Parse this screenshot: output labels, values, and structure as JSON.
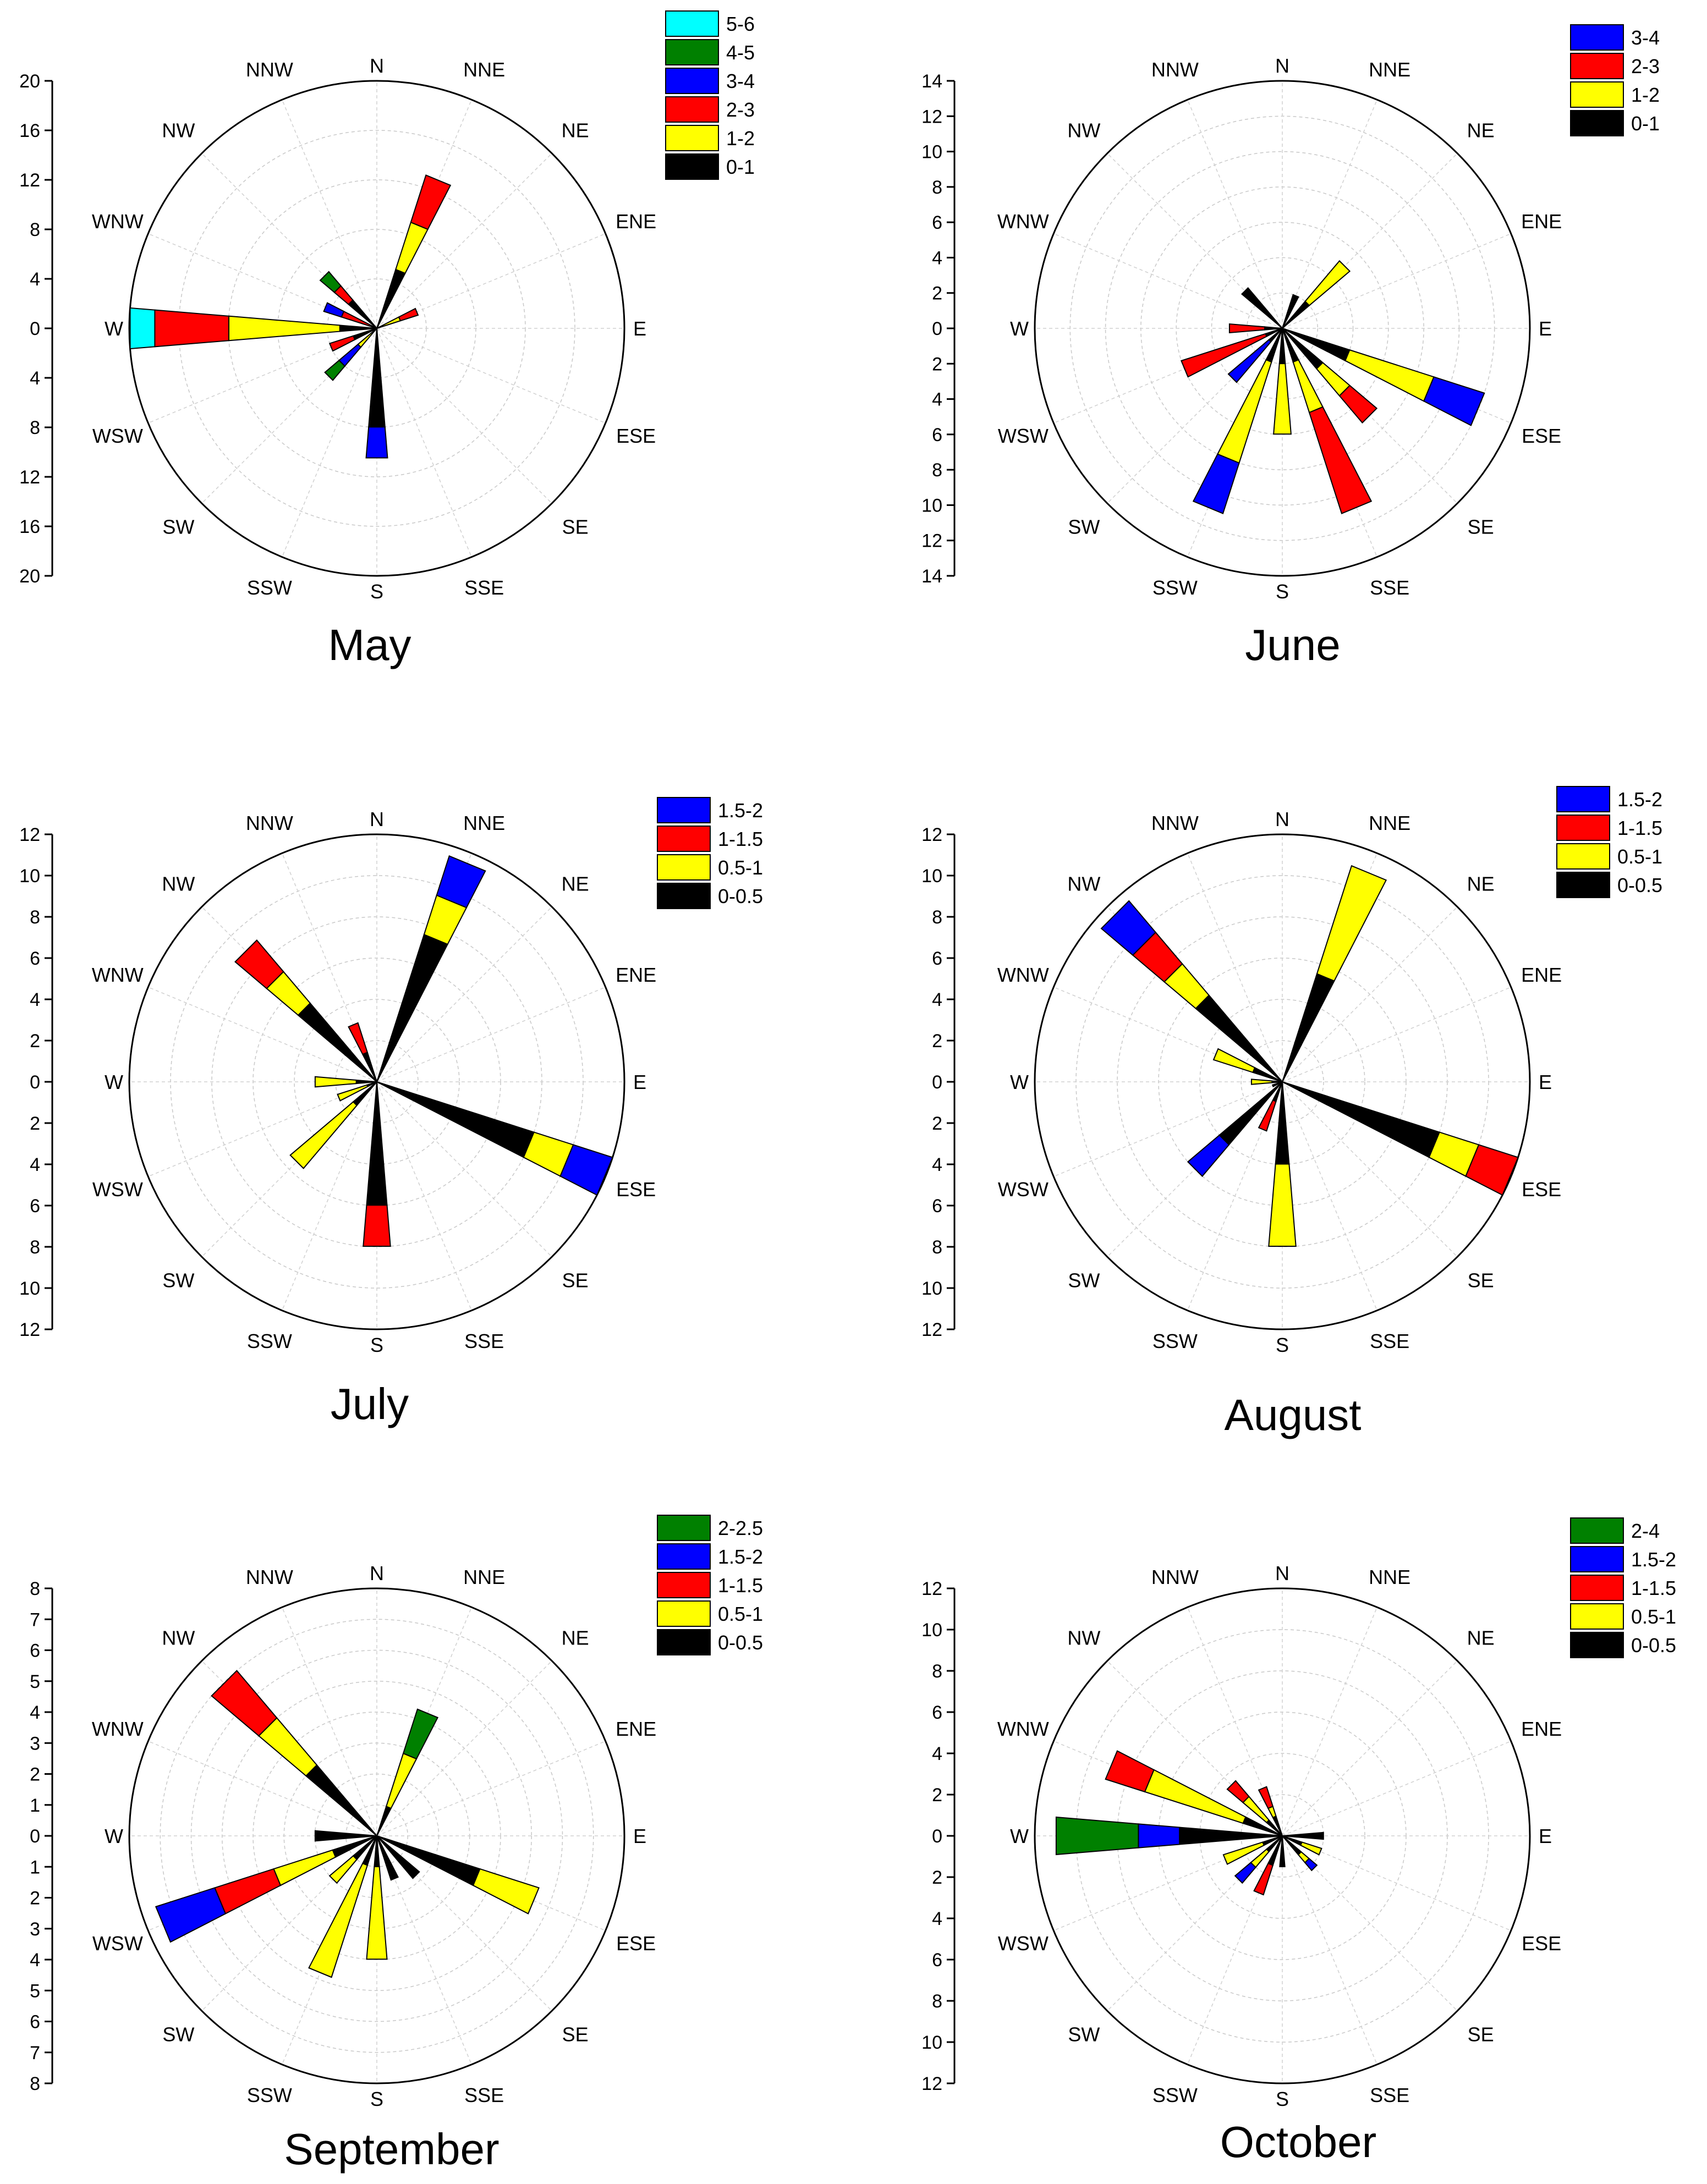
{
  "directions": [
    "N",
    "NNE",
    "NE",
    "ENE",
    "E",
    "ESE",
    "SE",
    "SSE",
    "S",
    "SSW",
    "SW",
    "WSW",
    "W",
    "WNW",
    "NW",
    "NNW"
  ],
  "chart_data": [
    {
      "type": "wind-rose",
      "caption": "May",
      "rmax": 20,
      "axis_ticks": [
        20,
        16,
        12,
        8,
        4,
        0,
        4,
        8,
        12,
        16,
        20
      ],
      "legend": [
        {
          "label": "5-6",
          "color": "#00ffff"
        },
        {
          "label": "4-5",
          "color": "#008000"
        },
        {
          "label": "3-4",
          "color": "#0000ff"
        },
        {
          "label": "2-3",
          "color": "#ff0000"
        },
        {
          "label": "1-2",
          "color": "#ffff00"
        },
        {
          "label": "0-1",
          "color": "#000000"
        }
      ],
      "values": {
        "NNE": [
          5,
          4,
          4,
          0,
          0,
          0
        ],
        "ENE": [
          0,
          2,
          1.5,
          0,
          0,
          0
        ],
        "S": [
          8,
          0,
          0,
          2.5,
          0,
          0
        ],
        "SW": [
          0,
          2,
          0,
          2,
          1.5,
          0
        ],
        "WSW": [
          2,
          0,
          2,
          0,
          0,
          0
        ],
        "W": [
          3,
          9,
          6,
          0,
          0,
          2
        ],
        "WNW": [
          0,
          0,
          3,
          1.5,
          0,
          0
        ],
        "NW": [
          3,
          0,
          1.5,
          0,
          1.5,
          0
        ]
      }
    },
    {
      "type": "wind-rose",
      "caption": "June",
      "rmax": 14,
      "axis_ticks": [
        14,
        12,
        10,
        8,
        6,
        4,
        2,
        0,
        2,
        4,
        6,
        8,
        10,
        12,
        14
      ],
      "legend": [
        {
          "label": "3-4",
          "color": "#0000ff"
        },
        {
          "label": "2-3",
          "color": "#ff0000"
        },
        {
          "label": "1-2",
          "color": "#ffff00"
        },
        {
          "label": "0-1",
          "color": "#000000"
        }
      ],
      "values": {
        "NNE": [
          2,
          0,
          0,
          0
        ],
        "NE": [
          2,
          3,
          0,
          0
        ],
        "ESE": [
          4,
          5,
          0,
          3
        ],
        "SE": [
          3,
          2,
          2,
          0
        ],
        "SSE": [
          2,
          3,
          6,
          0
        ],
        "S": [
          2,
          4,
          0,
          0
        ],
        "SSW": [
          2,
          6,
          0,
          3
        ],
        "SW": [
          1,
          0,
          0,
          3
        ],
        "WSW": [
          1,
          0,
          5,
          0
        ],
        "W": [
          1,
          0,
          2,
          0
        ],
        "NW": [
          3,
          0,
          0,
          0
        ]
      }
    },
    {
      "type": "wind-rose",
      "caption": "July",
      "rmax": 12,
      "axis_ticks": [
        12,
        10,
        8,
        6,
        4,
        2,
        0,
        2,
        4,
        6,
        8,
        10,
        12
      ],
      "legend": [
        {
          "label": "1.5-2",
          "color": "#0000ff"
        },
        {
          "label": "1-1.5",
          "color": "#ff0000"
        },
        {
          "label": "0.5-1",
          "color": "#ffff00"
        },
        {
          "label": "0-0.5",
          "color": "#000000"
        }
      ],
      "values": {
        "NNE": [
          7.5,
          2,
          0,
          2
        ],
        "ESE": [
          8,
          2,
          0,
          2
        ],
        "S": [
          6,
          0,
          2,
          0
        ],
        "SW": [
          1.5,
          4,
          0,
          0
        ],
        "WSW": [
          0.5,
          1.5,
          0,
          0
        ],
        "W": [
          1,
          2,
          0,
          0
        ],
        "NW": [
          5,
          2,
          2,
          0
        ],
        "NNW": [
          1.5,
          0,
          1.5,
          0
        ]
      }
    },
    {
      "type": "wind-rose",
      "caption": "August",
      "rmax": 12,
      "axis_ticks": [
        12,
        10,
        8,
        6,
        4,
        2,
        0,
        2,
        4,
        6,
        8,
        10,
        12
      ],
      "legend": [
        {
          "label": "1.5-2",
          "color": "#0000ff"
        },
        {
          "label": "1-1.5",
          "color": "#ff0000"
        },
        {
          "label": "0.5-1",
          "color": "#ffff00"
        },
        {
          "label": "0-0.5",
          "color": "#000000"
        }
      ],
      "values": {
        "NNE": [
          5.5,
          5.5,
          0,
          0
        ],
        "ESE": [
          8,
          2,
          2,
          0
        ],
        "S": [
          4,
          4,
          0,
          0
        ],
        "SSW": [
          1,
          0,
          1.5,
          0
        ],
        "SW": [
          4,
          0,
          0,
          2
        ],
        "WSW": [
          0.5,
          0,
          0,
          0
        ],
        "W": [
          0.5,
          1,
          0,
          0
        ],
        "WNW": [
          1.5,
          2,
          0,
          0
        ],
        "NW": [
          5.5,
          2,
          2,
          2
        ]
      }
    },
    {
      "type": "wind-rose",
      "caption": "September",
      "rmax": 8,
      "axis_ticks": [
        8,
        7,
        6,
        5,
        4,
        3,
        2,
        1,
        0,
        1,
        2,
        3,
        4,
        5,
        6,
        7,
        8
      ],
      "legend": [
        {
          "label": "2-2.5",
          "color": "#008000"
        },
        {
          "label": "1.5-2",
          "color": "#0000ff"
        },
        {
          "label": "1-1.5",
          "color": "#ff0000"
        },
        {
          "label": "0.5-1",
          "color": "#ffff00"
        },
        {
          "label": "0-0.5",
          "color": "#000000"
        }
      ],
      "values": {
        "NNE": [
          1,
          1.8,
          0,
          0,
          1.5
        ],
        "ESE": [
          3.5,
          2,
          0,
          0,
          0
        ],
        "SE": [
          1.8,
          0,
          0,
          0,
          0
        ],
        "SSE": [
          1.5,
          0,
          0,
          0,
          0
        ],
        "S": [
          1,
          3,
          0,
          0,
          0
        ],
        "SSW": [
          1,
          3.8,
          0,
          0,
          0
        ],
        "SW": [
          1,
          1,
          0,
          0,
          0
        ],
        "WSW": [
          1.5,
          2,
          2,
          2,
          0
        ],
        "W": [
          2,
          0,
          0,
          0,
          0
        ],
        "NW": [
          3,
          2,
          2,
          0,
          0
        ]
      }
    },
    {
      "type": "wind-rose",
      "caption": "October",
      "rmax": 12,
      "axis_ticks": [
        12,
        10,
        8,
        6,
        4,
        2,
        0,
        2,
        4,
        6,
        8,
        10,
        12
      ],
      "legend": [
        {
          "label": "2-4",
          "color": "#008000"
        },
        {
          "label": "1.5-2",
          "color": "#0000ff"
        },
        {
          "label": "1-1.5",
          "color": "#ff0000"
        },
        {
          "label": "0.5-1",
          "color": "#ffff00"
        },
        {
          "label": "0-0.5",
          "color": "#000000"
        }
      ],
      "values": {
        "E": [
          2,
          0,
          0,
          0,
          0
        ],
        "ESE": [
          1,
          1,
          0,
          0,
          0
        ],
        "SE": [
          1.2,
          0.5,
          0,
          0.5,
          0
        ],
        "S": [
          1.5,
          0,
          0,
          0,
          0
        ],
        "SSW": [
          1.5,
          0,
          1.5,
          0,
          0
        ],
        "SW": [
          1,
          1,
          0,
          1,
          0
        ],
        "WSW": [
          1,
          2,
          0,
          0,
          0
        ],
        "W": [
          5,
          0,
          0,
          2,
          4
        ],
        "WNW": [
          2,
          5,
          2,
          0,
          0
        ],
        "NW": [
          1,
          1.5,
          1,
          0,
          0
        ],
        "NNW": [
          1,
          0.5,
          1,
          0,
          0
        ]
      }
    }
  ]
}
